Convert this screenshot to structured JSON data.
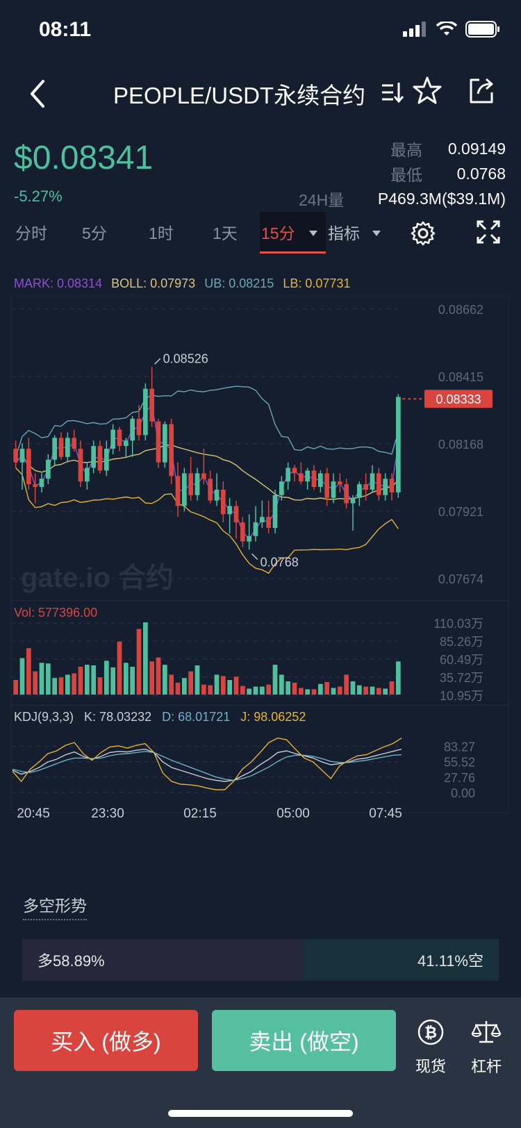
{
  "status_bar": {
    "time": "08:11"
  },
  "nav": {
    "title": "PEOPLE/USDT永续合约"
  },
  "ticker": {
    "price": "$0.08341",
    "change": "-5.27%",
    "high_label": "最高",
    "high_value": "0.09149",
    "low_label": "最低",
    "low_value": "0.0768",
    "vol_label": "24H量",
    "vol_value": "P469.3M($39.1M)"
  },
  "tabs": {
    "items": [
      "分时",
      "5分",
      "1时",
      "1天"
    ],
    "active": "15分",
    "indicator": "指标"
  },
  "indicators": {
    "mark": "MARK: 0.08314",
    "boll": "BOLL: 0.07973",
    "ub": "UB: 0.08215",
    "lb": "LB: 0.07731"
  },
  "colors": {
    "up": "#4fbf9e",
    "down": "#d9443f",
    "mark": "#8e4fd6",
    "boll": "#d9c57a",
    "ub": "#68a8b8",
    "lb": "#e8b23a",
    "kdj_k": "#c9ced6",
    "kdj_d": "#6fb1c9",
    "kdj_j": "#e8b23a"
  },
  "chart_data": {
    "type": "candlestick",
    "price_axis": [
      "0.08662",
      "0.08415",
      "0.08168",
      "0.07921",
      "0.07674"
    ],
    "price_range": [
      0.07674,
      0.08662
    ],
    "current_price_tag": "0.08333",
    "high_marker": "0.08526",
    "low_marker": "0.0768",
    "watermark": "gate.io 合约",
    "time_axis": [
      "20:45",
      "23:30",
      "02:15",
      "05:00",
      "07:45"
    ],
    "volume_label": "Vol: 577396.00",
    "volume_axis": [
      "110.03万",
      "85.26万",
      "60.49万",
      "35.72万",
      "10.95万"
    ],
    "kdj_label": "KDJ(9,3,3)",
    "kdj_k": "K: 78.03232",
    "kdj_d": "D: 68.01721",
    "kdj_j": "J: 98.06252",
    "kdj_axis": [
      "83.27",
      "55.52",
      "27.76",
      "0.00"
    ],
    "candles": [
      [
        0.0815,
        0.0818,
        0.0808,
        0.081
      ],
      [
        0.081,
        0.0817,
        0.08,
        0.0815
      ],
      [
        0.0815,
        0.0819,
        0.08,
        0.0802
      ],
      [
        0.0802,
        0.0806,
        0.0795,
        0.0801
      ],
      [
        0.0801,
        0.0806,
        0.0799,
        0.0804
      ],
      [
        0.0804,
        0.0813,
        0.0802,
        0.0811
      ],
      [
        0.0811,
        0.082,
        0.0809,
        0.0819
      ],
      [
        0.0819,
        0.0821,
        0.0811,
        0.0812
      ],
      [
        0.0812,
        0.0821,
        0.081,
        0.0819
      ],
      [
        0.0819,
        0.0822,
        0.0814,
        0.0815
      ],
      [
        0.0815,
        0.0818,
        0.0801,
        0.0803
      ],
      [
        0.0803,
        0.081,
        0.08,
        0.0808
      ],
      [
        0.0808,
        0.0818,
        0.0806,
        0.0816
      ],
      [
        0.0816,
        0.0818,
        0.0806,
        0.0807
      ],
      [
        0.0807,
        0.0818,
        0.0805,
        0.0815
      ],
      [
        0.0815,
        0.0824,
        0.0813,
        0.0822
      ],
      [
        0.0822,
        0.0823,
        0.0814,
        0.0816
      ],
      [
        0.0816,
        0.0819,
        0.0812,
        0.0818
      ],
      [
        0.0818,
        0.0827,
        0.0812,
        0.0826
      ],
      [
        0.0826,
        0.0831,
        0.0818,
        0.082
      ],
      [
        0.082,
        0.0839,
        0.0818,
        0.0837
      ],
      [
        0.0837,
        0.0845,
        0.0823,
        0.0825
      ],
      [
        0.0825,
        0.0826,
        0.0808,
        0.081
      ],
      [
        0.081,
        0.0825,
        0.0808,
        0.0824
      ],
      [
        0.0824,
        0.0826,
        0.0802,
        0.0805
      ],
      [
        0.0805,
        0.081,
        0.079,
        0.0794
      ],
      [
        0.0794,
        0.0808,
        0.0792,
        0.0806
      ],
      [
        0.0806,
        0.0812,
        0.0796,
        0.0798
      ],
      [
        0.0798,
        0.0808,
        0.0796,
        0.0806
      ],
      [
        0.0806,
        0.0815,
        0.0802,
        0.0804
      ],
      [
        0.0804,
        0.0807,
        0.0795,
        0.0796
      ],
      [
        0.0796,
        0.0806,
        0.0794,
        0.08
      ],
      [
        0.08,
        0.0803,
        0.0788,
        0.0791
      ],
      [
        0.0791,
        0.0797,
        0.0784,
        0.0794
      ],
      [
        0.0794,
        0.0796,
        0.0782,
        0.0788
      ],
      [
        0.0788,
        0.079,
        0.0779,
        0.0781
      ],
      [
        0.0781,
        0.0791,
        0.0778,
        0.0783
      ],
      [
        0.0783,
        0.0794,
        0.0781,
        0.0788
      ],
      [
        0.0788,
        0.0796,
        0.0786,
        0.079
      ],
      [
        0.079,
        0.0796,
        0.0784,
        0.0786
      ],
      [
        0.0786,
        0.08,
        0.0784,
        0.0798
      ],
      [
        0.0798,
        0.0805,
        0.0796,
        0.0803
      ],
      [
        0.0803,
        0.081,
        0.08,
        0.0808
      ],
      [
        0.0808,
        0.0809,
        0.0803,
        0.0806
      ],
      [
        0.0806,
        0.081,
        0.0802,
        0.0803
      ],
      [
        0.0803,
        0.0808,
        0.08,
        0.0807
      ],
      [
        0.0807,
        0.0809,
        0.08,
        0.0801
      ],
      [
        0.0801,
        0.0807,
        0.0799,
        0.0806
      ],
      [
        0.0806,
        0.0808,
        0.0794,
        0.0797
      ],
      [
        0.0797,
        0.0806,
        0.0795,
        0.0803
      ],
      [
        0.0803,
        0.0806,
        0.0799,
        0.0802
      ],
      [
        0.0802,
        0.0804,
        0.0793,
        0.0795
      ],
      [
        0.0795,
        0.0798,
        0.0785,
        0.0797
      ],
      [
        0.0797,
        0.0803,
        0.0794,
        0.0802
      ],
      [
        0.0802,
        0.0806,
        0.0796,
        0.08
      ],
      [
        0.08,
        0.0809,
        0.0799,
        0.0806
      ],
      [
        0.0806,
        0.0808,
        0.0796,
        0.0798
      ],
      [
        0.0798,
        0.0806,
        0.0796,
        0.0804
      ],
      [
        0.0804,
        0.0806,
        0.0796,
        0.0799
      ],
      [
        0.0799,
        0.0835,
        0.0797,
        0.0834
      ]
    ],
    "volumes": [
      22,
      55,
      70,
      35,
      48,
      47,
      25,
      26,
      30,
      32,
      42,
      45,
      44,
      26,
      51,
      41,
      80,
      48,
      42,
      99,
      109,
      50,
      56,
      45,
      30,
      18,
      25,
      35,
      44,
      15,
      14,
      30,
      28,
      22,
      27,
      13,
      9,
      12,
      12,
      15,
      45,
      30,
      20,
      18,
      10,
      8,
      8,
      16,
      19,
      10,
      12,
      30,
      20,
      14,
      12,
      12,
      10,
      9,
      20,
      50
    ],
    "kdj": {
      "k": [
        40,
        33,
        38,
        45,
        55,
        60,
        68,
        73,
        65,
        60,
        65,
        72,
        74,
        73,
        76,
        78,
        72,
        55,
        45,
        40,
        35,
        30,
        25,
        22,
        20,
        22,
        30,
        38,
        50,
        60,
        72,
        75,
        70,
        66,
        62,
        55,
        50,
        52,
        55,
        60,
        62,
        66,
        70,
        74,
        78
      ],
      "d": [
        42,
        38,
        36,
        40,
        46,
        52,
        58,
        62,
        62,
        61,
        62,
        66,
        69,
        70,
        72,
        74,
        72,
        65,
        58,
        52,
        46,
        40,
        34,
        28,
        24,
        22,
        25,
        30,
        38,
        46,
        56,
        64,
        67,
        67,
        65,
        61,
        56,
        54,
        54,
        56,
        58,
        61,
        64,
        67,
        68
      ],
      "j": [
        38,
        20,
        42,
        55,
        70,
        75,
        85,
        90,
        70,
        58,
        72,
        82,
        84,
        80,
        85,
        88,
        72,
        35,
        20,
        15,
        14,
        12,
        8,
        5,
        5,
        20,
        42,
        55,
        72,
        90,
        98,
        95,
        78,
        62,
        55,
        40,
        25,
        48,
        58,
        66,
        68,
        75,
        82,
        88,
        98
      ]
    }
  },
  "long_short": {
    "title": "多空形势",
    "long": "多58.89%",
    "long_ratio": 0.5889,
    "short": "41.11%空"
  },
  "actions": {
    "buy": "买入 (做多)",
    "sell": "卖出 (做空)",
    "spot": "现货",
    "leverage": "杠杆"
  }
}
